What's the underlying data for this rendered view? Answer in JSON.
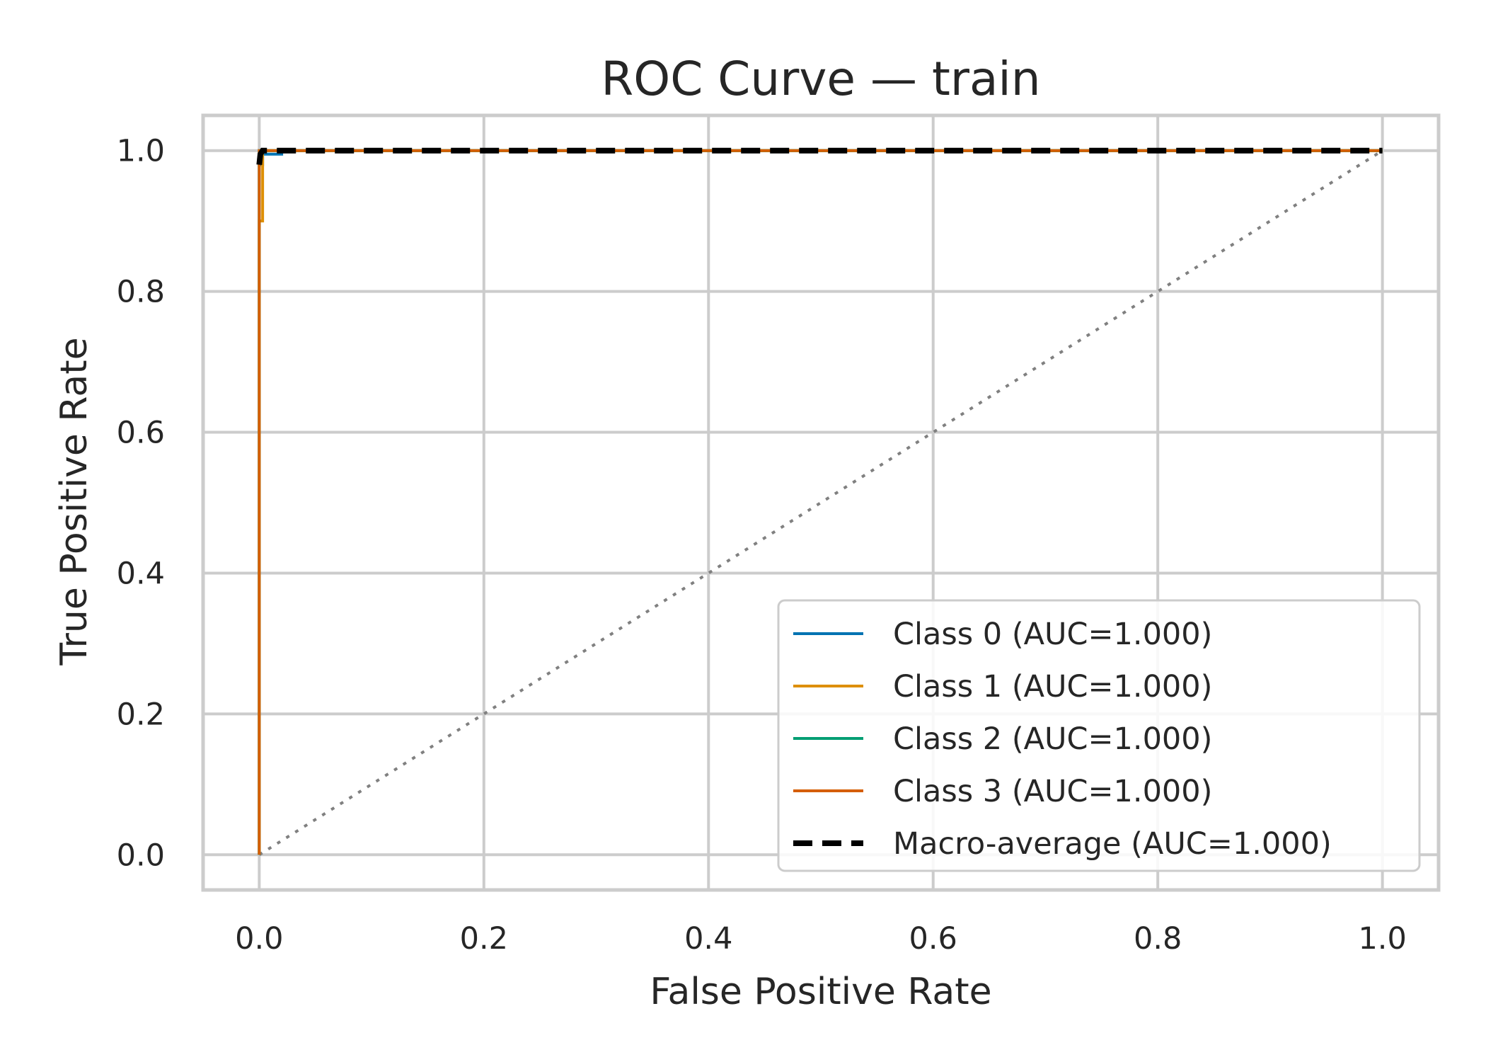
{
  "chart_data": {
    "type": "line",
    "title": "ROC Curve — train",
    "xlabel": "False Positive Rate",
    "ylabel": "True Positive Rate",
    "xlim": [
      -0.05,
      1.05
    ],
    "ylim": [
      -0.05,
      1.05
    ],
    "xticks": [
      0.0,
      0.2,
      0.4,
      0.6,
      0.8,
      1.0
    ],
    "yticks": [
      0.0,
      0.2,
      0.4,
      0.6,
      0.8,
      1.0
    ],
    "xtick_labels": [
      "0.0",
      "0.2",
      "0.4",
      "0.6",
      "0.8",
      "1.0"
    ],
    "ytick_labels": [
      "0.0",
      "0.2",
      "0.4",
      "0.6",
      "0.8",
      "1.0"
    ],
    "grid": true,
    "legend_position": "bottom-right",
    "series": [
      {
        "name": "Class 0 (AUC=1.000)",
        "color": "#0173b2",
        "style": "solid",
        "x": [
          0.0,
          0.0,
          0.003,
          0.003,
          0.02,
          0.02,
          1.0
        ],
        "y": [
          0.0,
          0.98,
          0.98,
          0.995,
          0.995,
          1.0,
          1.0
        ]
      },
      {
        "name": "Class 1 (AUC=1.000)",
        "color": "#de8f05",
        "style": "solid",
        "x": [
          0.0,
          0.0,
          0.003,
          0.003,
          1.0
        ],
        "y": [
          0.0,
          0.9,
          0.9,
          1.0,
          1.0
        ]
      },
      {
        "name": "Class 2 (AUC=1.000)",
        "color": "#029e73",
        "style": "solid",
        "x": [
          0.0,
          0.0,
          1.0
        ],
        "y": [
          0.0,
          1.0,
          1.0
        ]
      },
      {
        "name": "Class 3 (AUC=1.000)",
        "color": "#d55e00",
        "style": "solid",
        "x": [
          0.0,
          0.0,
          1.0
        ],
        "y": [
          0.0,
          1.0,
          1.0
        ]
      },
      {
        "name": "Macro-average (AUC=1.000)",
        "color": "#000000",
        "style": "dashed",
        "x": [
          0.0,
          0.001,
          0.003,
          0.01,
          0.02,
          1.0
        ],
        "y": [
          0.98,
          0.995,
          1.0,
          1.0,
          1.0,
          1.0
        ]
      }
    ],
    "reference_line": {
      "color": "#808080",
      "style": "dotted",
      "x": [
        0.0,
        1.0
      ],
      "y": [
        0.0,
        1.0
      ]
    }
  }
}
